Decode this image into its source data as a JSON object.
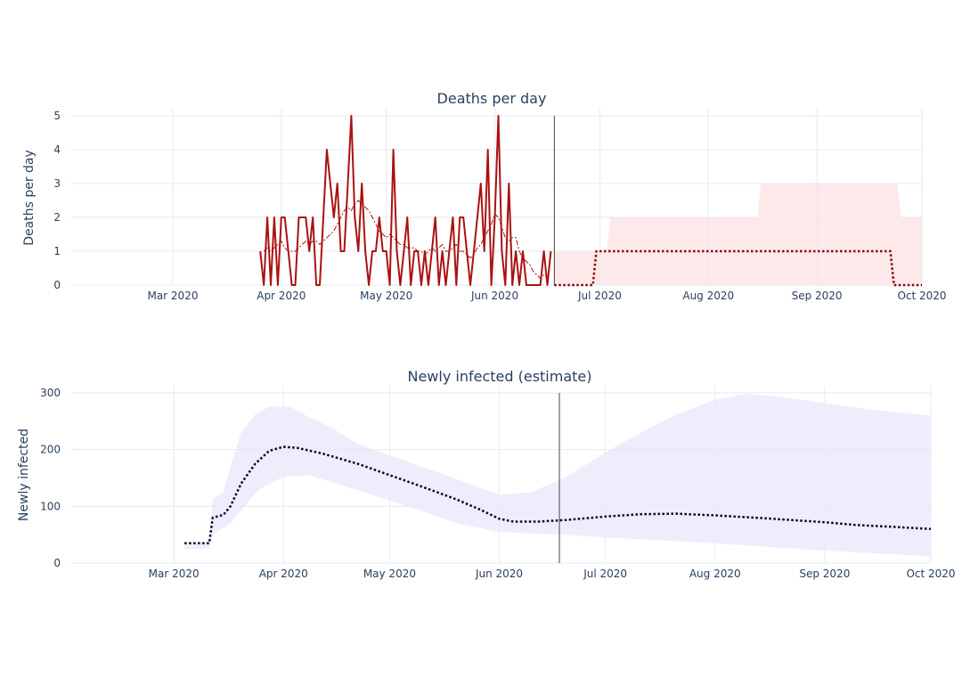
{
  "chart_data": [
    {
      "type": "line",
      "title": "Deaths per day",
      "xlabel": "",
      "ylabel": "Deaths per day",
      "x_range": [
        "2020-02-01",
        "2020-10-01"
      ],
      "ylim": [
        0,
        5
      ],
      "y_ticks": [
        0,
        1,
        2,
        3,
        4,
        5
      ],
      "x_ticks": [
        {
          "date": "2020-03-01",
          "label": "Mar 2020"
        },
        {
          "date": "2020-04-01",
          "label": "Apr 2020"
        },
        {
          "date": "2020-05-01",
          "label": "May 2020"
        },
        {
          "date": "2020-06-01",
          "label": "Jun 2020"
        },
        {
          "date": "2020-07-01",
          "label": "Jul 2020"
        },
        {
          "date": "2020-08-01",
          "label": "Aug 2020"
        },
        {
          "date": "2020-09-01",
          "label": "Sep 2020"
        },
        {
          "date": "2020-10-01",
          "label": "Oct 2020"
        }
      ],
      "grid": true,
      "vline_date": "2020-06-18",
      "series": [
        {
          "kind": "observed",
          "color": "#aa1111",
          "start": "2020-03-26",
          "values": [
            1,
            0,
            2,
            0,
            2,
            0,
            2,
            2,
            1,
            0,
            0,
            2,
            2,
            2,
            1,
            2,
            0,
            0,
            2,
            4,
            3,
            2,
            3,
            1,
            1,
            3,
            5,
            2,
            1,
            3,
            1,
            0,
            1,
            1,
            2,
            1,
            1,
            0,
            4,
            1,
            0,
            1,
            2,
            0,
            1,
            1,
            0,
            1,
            0,
            1,
            2,
            0,
            1,
            0,
            1,
            2,
            0,
            2,
            2,
            1,
            0,
            1,
            2,
            3,
            1,
            4,
            0,
            2,
            5,
            1,
            0,
            3,
            0,
            1,
            0,
            1,
            0,
            0,
            0,
            0,
            0,
            1,
            0,
            1
          ]
        },
        {
          "kind": "smoothed",
          "color": "#aa1111",
          "start": "2020-03-27",
          "values": [
            1.0,
            1.1,
            1.0,
            1.1,
            1.2,
            1.3,
            1.1,
            1.0,
            1.0,
            1.0,
            1.1,
            1.2,
            1.3,
            1.2,
            1.3,
            1.3,
            1.2,
            1.3,
            1.4,
            1.5,
            1.6,
            1.8,
            2.0,
            2.2,
            2.3,
            2.2,
            2.4,
            2.5,
            2.4,
            2.3,
            2.2,
            2.0,
            1.8,
            1.6,
            1.5,
            1.4,
            1.5,
            1.4,
            1.3,
            1.2,
            1.2,
            1.1,
            1.1,
            1.1,
            1.0,
            1.0,
            0.9,
            1.0,
            1.1,
            1.0,
            1.1,
            1.2,
            1.0,
            1.0,
            1.1,
            1.2,
            1.0,
            1.0,
            0.9,
            0.8,
            0.9,
            1.1,
            1.2,
            1.4,
            1.6,
            1.8,
            2.1,
            2.0,
            1.7,
            1.4,
            1.3,
            1.4,
            1.4,
            1.0,
            0.8,
            0.7,
            0.6,
            0.4,
            0.3,
            0.2,
            0.3,
            0.2
          ]
        },
        {
          "kind": "forecast",
          "color": "#8b0000",
          "points": [
            [
              "2020-06-18",
              0
            ],
            [
              "2020-06-29",
              0
            ],
            [
              "2020-06-30",
              1
            ],
            [
              "2020-09-22",
              1
            ],
            [
              "2020-09-23",
              0
            ],
            [
              "2020-10-01",
              0
            ]
          ]
        }
      ],
      "band": {
        "color": "#fde8ea",
        "upper": [
          [
            "2020-06-18",
            1
          ],
          [
            "2020-07-03",
            1
          ],
          [
            "2020-07-04",
            2
          ],
          [
            "2020-08-15",
            2
          ],
          [
            "2020-08-16",
            3
          ],
          [
            "2020-09-24",
            3
          ],
          [
            "2020-09-25",
            2
          ],
          [
            "2020-10-01",
            2
          ]
        ],
        "lower": [
          [
            "2020-06-18",
            0
          ],
          [
            "2020-10-01",
            0
          ]
        ]
      }
    },
    {
      "type": "line",
      "title": "Newly infected (estimate)",
      "xlabel": "",
      "ylabel": "Newly infected",
      "x_range": [
        "2020-02-01",
        "2020-10-01"
      ],
      "ylim": [
        0,
        300
      ],
      "y_ticks": [
        0,
        100,
        200,
        300
      ],
      "x_ticks": [
        {
          "date": "2020-03-01",
          "label": "Mar 2020"
        },
        {
          "date": "2020-04-01",
          "label": "Apr 2020"
        },
        {
          "date": "2020-05-01",
          "label": "May 2020"
        },
        {
          "date": "2020-06-01",
          "label": "Jun 2020"
        },
        {
          "date": "2020-07-01",
          "label": "Jul 2020"
        },
        {
          "date": "2020-08-01",
          "label": "Aug 2020"
        },
        {
          "date": "2020-09-01",
          "label": "Sep 2020"
        },
        {
          "date": "2020-10-01",
          "label": "Oct 2020"
        }
      ],
      "grid": true,
      "vline_date": "2020-06-18",
      "series": [
        {
          "kind": "estimate",
          "color": "#0d0030",
          "points": [
            [
              "2020-03-04",
              35
            ],
            [
              "2020-03-11",
              35
            ],
            [
              "2020-03-12",
              80
            ],
            [
              "2020-03-15",
              85
            ],
            [
              "2020-03-17",
              100
            ],
            [
              "2020-03-20",
              140
            ],
            [
              "2020-03-24",
              175
            ],
            [
              "2020-03-28",
              198
            ],
            [
              "2020-04-01",
              205
            ],
            [
              "2020-04-05",
              203
            ],
            [
              "2020-04-12",
              193
            ],
            [
              "2020-04-22",
              175
            ],
            [
              "2020-05-01",
              155
            ],
            [
              "2020-05-10",
              135
            ],
            [
              "2020-05-20",
              112
            ],
            [
              "2020-05-27",
              93
            ],
            [
              "2020-06-01",
              78
            ],
            [
              "2020-06-05",
              73
            ],
            [
              "2020-06-12",
              73
            ],
            [
              "2020-06-20",
              76
            ],
            [
              "2020-07-01",
              82
            ],
            [
              "2020-07-11",
              86
            ],
            [
              "2020-07-21",
              87
            ],
            [
              "2020-08-01",
              84
            ],
            [
              "2020-08-15",
              79
            ],
            [
              "2020-09-01",
              72
            ],
            [
              "2020-09-10",
              67
            ],
            [
              "2020-09-20",
              64
            ],
            [
              "2020-10-01",
              60
            ]
          ]
        }
      ],
      "band": {
        "color": "#efedfc",
        "upper": [
          [
            "2020-03-04",
            35
          ],
          [
            "2020-03-11",
            35
          ],
          [
            "2020-03-12",
            112
          ],
          [
            "2020-03-15",
            125
          ],
          [
            "2020-03-17",
            170
          ],
          [
            "2020-03-20",
            230
          ],
          [
            "2020-03-24",
            262
          ],
          [
            "2020-03-28",
            276
          ],
          [
            "2020-04-03",
            275
          ],
          [
            "2020-04-08",
            258
          ],
          [
            "2020-04-15",
            237
          ],
          [
            "2020-04-22",
            210
          ],
          [
            "2020-05-01",
            190
          ],
          [
            "2020-05-10",
            170
          ],
          [
            "2020-05-20",
            148
          ],
          [
            "2020-06-01",
            120
          ],
          [
            "2020-06-10",
            125
          ],
          [
            "2020-06-20",
            152
          ],
          [
            "2020-07-01",
            195
          ],
          [
            "2020-07-11",
            230
          ],
          [
            "2020-07-21",
            262
          ],
          [
            "2020-08-01",
            288
          ],
          [
            "2020-08-10",
            298
          ],
          [
            "2020-08-20",
            293
          ],
          [
            "2020-09-01",
            282
          ],
          [
            "2020-09-15",
            270
          ],
          [
            "2020-10-01",
            260
          ]
        ],
        "lower": [
          [
            "2020-03-04",
            25
          ],
          [
            "2020-03-11",
            25
          ],
          [
            "2020-03-12",
            50
          ],
          [
            "2020-03-17",
            70
          ],
          [
            "2020-03-25",
            130
          ],
          [
            "2020-04-01",
            152
          ],
          [
            "2020-04-08",
            155
          ],
          [
            "2020-04-15",
            142
          ],
          [
            "2020-04-25",
            122
          ],
          [
            "2020-05-10",
            92
          ],
          [
            "2020-05-20",
            70
          ],
          [
            "2020-06-01",
            55
          ],
          [
            "2020-06-10",
            52
          ],
          [
            "2020-06-20",
            50
          ],
          [
            "2020-07-01",
            45
          ],
          [
            "2020-08-01",
            35
          ],
          [
            "2020-09-01",
            22
          ],
          [
            "2020-10-01",
            12
          ]
        ]
      }
    }
  ]
}
